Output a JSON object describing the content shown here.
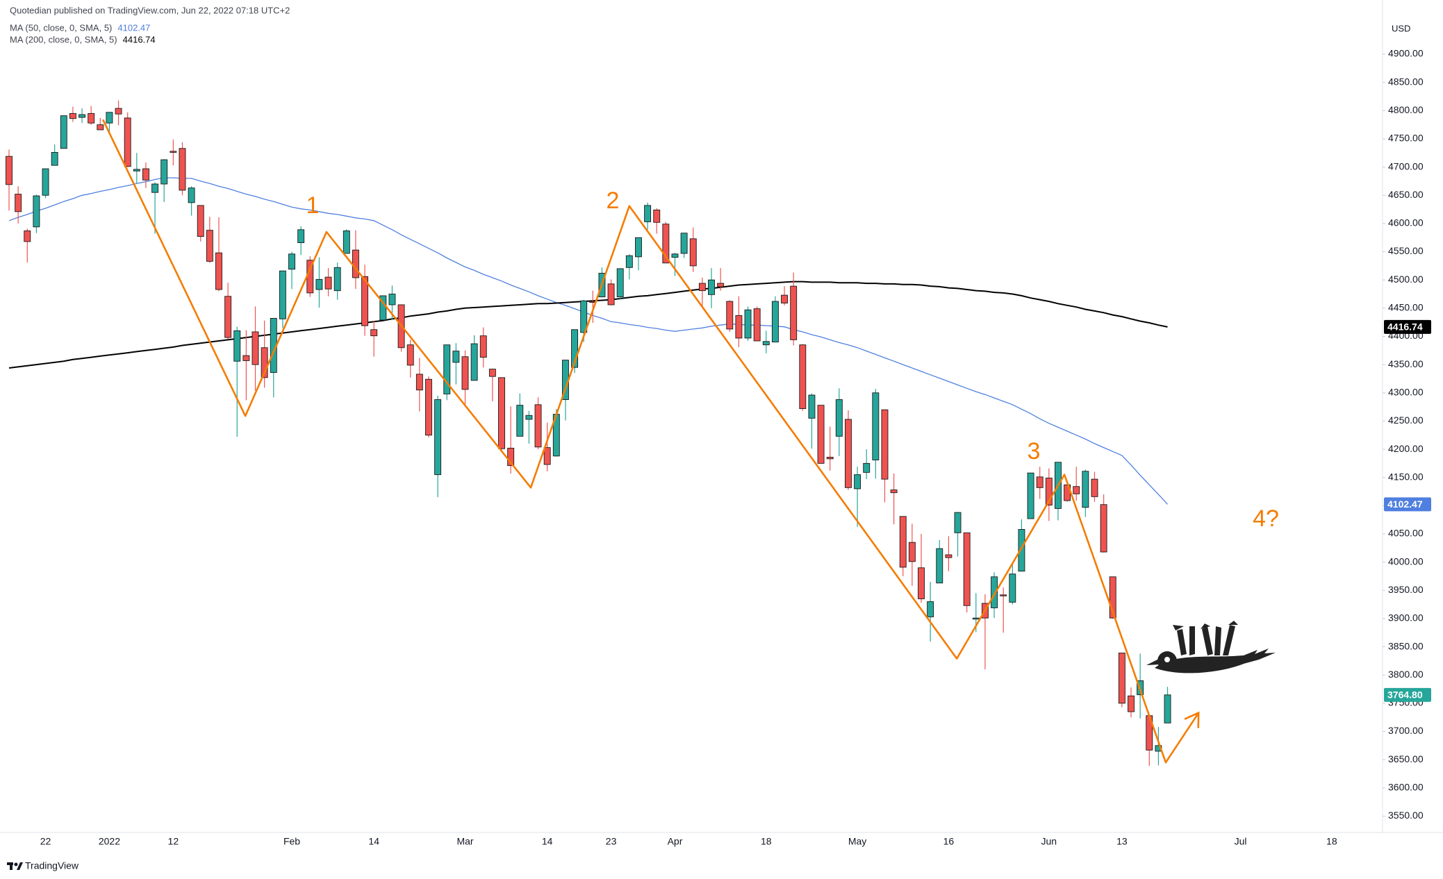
{
  "header": {
    "publisher": "Quotedian published on TradingView.com, Jun 22, 2022 07:18 UTC+2"
  },
  "footer": {
    "brand": "TradingView"
  },
  "chart_data": {
    "type": "candlestick",
    "currency": "USD",
    "categories": [
      null,
      null,
      null,
      null,
      "22",
      null,
      null,
      null,
      null,
      null,
      null,
      "2022",
      null,
      null,
      null,
      null,
      null,
      null,
      "12",
      null,
      null,
      null,
      null,
      null,
      null,
      null,
      null,
      null,
      null,
      null,
      null,
      "Feb",
      null,
      null,
      null,
      null,
      null,
      null,
      null,
      null,
      "14",
      null,
      null,
      null,
      null,
      null,
      null,
      null,
      null,
      null,
      "Mar",
      null,
      null,
      null,
      null,
      null,
      null,
      null,
      null,
      "14",
      null,
      null,
      null,
      null,
      null,
      null,
      "23",
      null,
      null,
      null,
      null,
      null,
      null,
      "Apr",
      null,
      null,
      null,
      null,
      null,
      null,
      null,
      null,
      null,
      "18",
      null,
      null,
      null,
      null,
      null,
      null,
      null,
      null,
      null,
      "May",
      null,
      null,
      null,
      null,
      null,
      null,
      null,
      null,
      null,
      "16",
      null,
      null,
      null,
      null,
      null,
      null,
      null,
      null,
      null,
      null,
      "Jun",
      null,
      null,
      null,
      null,
      null,
      null,
      null,
      "13",
      null,
      null,
      null,
      null,
      null,
      null,
      null,
      null,
      null,
      null,
      null,
      null,
      "Jul",
      null,
      null,
      null,
      null,
      null,
      null,
      null,
      null,
      null,
      "18",
      null,
      null,
      null,
      null
    ],
    "ohlc": [
      [
        4719,
        4731,
        4623,
        4669
      ],
      [
        4652,
        4666,
        4600,
        4621
      ],
      [
        4587,
        4591,
        4531,
        4568
      ],
      [
        4594,
        4651,
        4583,
        4649
      ],
      [
        4650,
        4697,
        4645,
        4697
      ],
      [
        4703,
        4740,
        4703,
        4726
      ],
      [
        4733,
        4791,
        4733,
        4791
      ],
      [
        4795,
        4807,
        4780,
        4786
      ],
      [
        4788,
        4804,
        4778,
        4793
      ],
      [
        4795,
        4808,
        4775,
        4778
      ],
      [
        4775,
        4787,
        4766,
        4766
      ],
      [
        4778,
        4797,
        4758,
        4797
      ],
      [
        4804,
        4818,
        4774,
        4794
      ],
      [
        4787,
        4797,
        4700,
        4701
      ],
      [
        4693,
        4725,
        4671,
        4696
      ],
      [
        4697,
        4708,
        4663,
        4677
      ],
      [
        4655,
        4673,
        4582,
        4670
      ],
      [
        4670,
        4714,
        4638,
        4713
      ],
      [
        4728,
        4749,
        4703,
        4726
      ],
      [
        4733,
        4744,
        4650,
        4659
      ],
      [
        4637,
        4666,
        4614,
        4663
      ],
      [
        4632,
        4632,
        4568,
        4577
      ],
      [
        4588,
        4612,
        4530,
        4533
      ],
      [
        4548,
        4611,
        4480,
        4483
      ],
      [
        4471,
        4495,
        4395,
        4398
      ],
      [
        4356,
        4417,
        4222,
        4410
      ],
      [
        4366,
        4411,
        4287,
        4357
      ],
      [
        4408,
        4453,
        4304,
        4350
      ],
      [
        4380,
        4428,
        4309,
        4327
      ],
      [
        4336,
        4432,
        4292,
        4432
      ],
      [
        4431,
        4516,
        4415,
        4516
      ],
      [
        4519,
        4550,
        4484,
        4546
      ],
      [
        4566,
        4595,
        4544,
        4589
      ],
      [
        4535,
        4542,
        4470,
        4477
      ],
      [
        4483,
        4540,
        4451,
        4501
      ],
      [
        4505,
        4521,
        4471,
        4484
      ],
      [
        4481,
        4531,
        4465,
        4522
      ],
      [
        4547,
        4590,
        4547,
        4587
      ],
      [
        4553,
        4588,
        4484,
        4504
      ],
      [
        4506,
        4527,
        4401,
        4419
      ],
      [
        4412,
        4427,
        4364,
        4401
      ],
      [
        4429,
        4472,
        4429,
        4472
      ],
      [
        4456,
        4490,
        4429,
        4475
      ],
      [
        4456,
        4456,
        4373,
        4380
      ],
      [
        4385,
        4394,
        4327,
        4349
      ],
      [
        4333,
        4362,
        4267,
        4305
      ],
      [
        4324,
        4329,
        4221,
        4225
      ],
      [
        4155,
        4295,
        4115,
        4288
      ],
      [
        4298,
        4385,
        4287,
        4385
      ],
      [
        4354,
        4388,
        4315,
        4374
      ],
      [
        4364,
        4375,
        4279,
        4306
      ],
      [
        4322,
        4402,
        4322,
        4387
      ],
      [
        4401,
        4416,
        4345,
        4363
      ],
      [
        4342,
        4343,
        4285,
        4329
      ],
      [
        4327,
        4327,
        4199,
        4201
      ],
      [
        4202,
        4276,
        4157,
        4171
      ],
      [
        4223,
        4299,
        4223,
        4278
      ],
      [
        4253,
        4268,
        4210,
        4260
      ],
      [
        4279,
        4292,
        4200,
        4204
      ],
      [
        4203,
        4247,
        4161,
        4173
      ],
      [
        4188,
        4271,
        4187,
        4262
      ],
      [
        4288,
        4358,
        4251,
        4358
      ],
      [
        4345,
        4412,
        4335,
        4412
      ],
      [
        4407,
        4465,
        4390,
        4463
      ],
      [
        4462,
        4481,
        4424,
        4461
      ],
      [
        4470,
        4522,
        4469,
        4512
      ],
      [
        4493,
        4501,
        4455,
        4456
      ],
      [
        4470,
        4520,
        4465,
        4520
      ],
      [
        4522,
        4546,
        4501,
        4543
      ],
      [
        4541,
        4575,
        4517,
        4575
      ],
      [
        4603,
        4637,
        4589,
        4632
      ],
      [
        4624,
        4627,
        4582,
        4602
      ],
      [
        4599,
        4603,
        4530,
        4530
      ],
      [
        4540,
        4548,
        4507,
        4546
      ],
      [
        4547,
        4583,
        4539,
        4583
      ],
      [
        4573,
        4593,
        4514,
        4525
      ],
      [
        4494,
        4504,
        4452,
        4481
      ],
      [
        4474,
        4521,
        4450,
        4500
      ],
      [
        4494,
        4521,
        4481,
        4488
      ],
      [
        4462,
        4464,
        4408,
        4413
      ],
      [
        4437,
        4471,
        4381,
        4397
      ],
      [
        4397,
        4453,
        4392,
        4447
      ],
      [
        4449,
        4453,
        4392,
        4392
      ],
      [
        4385,
        4410,
        4370,
        4391
      ],
      [
        4390,
        4471,
        4390,
        4462
      ],
      [
        4473,
        4489,
        4455,
        4459
      ],
      [
        4489,
        4513,
        4384,
        4394
      ],
      [
        4385,
        4386,
        4268,
        4272
      ],
      [
        4255,
        4299,
        4201,
        4296
      ],
      [
        4278,
        4278,
        4175,
        4175
      ],
      [
        4186,
        4240,
        4162,
        4183
      ],
      [
        4223,
        4308,
        4188,
        4288
      ],
      [
        4253,
        4269,
        4128,
        4132
      ],
      [
        4130,
        4169,
        4062,
        4155
      ],
      [
        4159,
        4200,
        4147,
        4175
      ],
      [
        4181,
        4307,
        4148,
        4300
      ],
      [
        4270,
        4270,
        4106,
        4147
      ],
      [
        4128,
        4157,
        4067,
        4123
      ],
      [
        4081,
        4081,
        3975,
        3991
      ],
      [
        4035,
        4068,
        3958,
        4001
      ],
      [
        3990,
        4050,
        3928,
        3935
      ],
      [
        3903,
        3965,
        3859,
        3930
      ],
      [
        3963,
        4039,
        3963,
        4024
      ],
      [
        4013,
        4046,
        3984,
        4008
      ],
      [
        4052,
        4089,
        4010,
        4088
      ],
      [
        4052,
        4052,
        3911,
        3923
      ],
      [
        3899,
        3945,
        3876,
        3901
      ],
      [
        3927,
        3943,
        3810,
        3901
      ],
      [
        3919,
        3982,
        3901,
        3974
      ],
      [
        3942,
        3955,
        3875,
        3941
      ],
      [
        3929,
        3999,
        3925,
        3979
      ],
      [
        3984,
        4076,
        3984,
        4058
      ],
      [
        4077,
        4158,
        4077,
        4158
      ],
      [
        4151,
        4169,
        4112,
        4132
      ],
      [
        4149,
        4166,
        4073,
        4101
      ],
      [
        4095,
        4177,
        4074,
        4177
      ],
      [
        4137,
        4143,
        4107,
        4109
      ],
      [
        4134,
        4169,
        4109,
        4121
      ],
      [
        4097,
        4164,
        4080,
        4161
      ],
      [
        4147,
        4160,
        4107,
        4116
      ],
      [
        4102,
        4120,
        4017,
        4018
      ],
      [
        3974,
        3974,
        3900,
        3901
      ],
      [
        3839,
        3839,
        3743,
        3750
      ],
      [
        3763,
        3778,
        3725,
        3735
      ],
      [
        3765,
        3838,
        3723,
        3790
      ],
      [
        3728,
        3728,
        3639,
        3667
      ],
      [
        3665,
        3708,
        3640,
        3675
      ],
      [
        3715,
        3779,
        3715,
        3764.8
      ],
      null,
      null,
      null,
      null,
      null,
      null,
      null,
      null,
      null,
      null,
      null,
      null,
      null,
      null,
      null,
      null,
      null,
      null,
      null,
      null,
      null,
      null
    ],
    "up_color": "#26a69a",
    "down_color": "#ef5350",
    "last_close_label": "3764.80",
    "series": [
      {
        "name": "MA (50, close, 0, SMA, 5)",
        "color": "#4f7fe0",
        "values": [
          4605,
          4611,
          4616,
          4622,
          4627,
          4633,
          4639,
          4644,
          4650,
          4653,
          4657,
          4660,
          4664,
          4667,
          4671,
          4674,
          4678,
          4681,
          4681,
          4680,
          4680,
          4675,
          4671,
          4666,
          4662,
          4657,
          4652,
          4648,
          4643,
          4639,
          4634,
          4629,
          4626,
          4624,
          4621,
          4618,
          4616,
          4613,
          4610,
          4608,
          4605,
          4597,
          4589,
          4580,
          4572,
          4564,
          4556,
          4548,
          4539,
          4531,
          4523,
          4517,
          4510,
          4504,
          4498,
          4491,
          4485,
          4479,
          4472,
          4466,
          4460,
          4455,
          4449,
          4443,
          4437,
          4432,
          4426,
          4424,
          4421,
          4419,
          4416,
          4414,
          4411,
          4409,
          4411,
          4413,
          4415,
          4418,
          4420,
          4422,
          4421,
          4420,
          4420,
          4419,
          4418,
          4417,
          4412,
          4408,
          4403,
          4399,
          4394,
          4389,
          4385,
          4380,
          4374,
          4368,
          4362,
          4356,
          4350,
          4344,
          4338,
          4332,
          4326,
          4320,
          4314,
          4308,
          4302,
          4297,
          4291,
          4285,
          4279,
          4271,
          4263,
          4254,
          4246,
          4239,
          4232,
          4225,
          4218,
          4210,
          4203,
          4196,
          4189,
          4172,
          4154,
          4137,
          4120,
          4102.47,
          null,
          null,
          null,
          null,
          null,
          null,
          null,
          null,
          null,
          null,
          null,
          null,
          null,
          null,
          null,
          null,
          null,
          null,
          null,
          null,
          null,
          null
        ]
      },
      {
        "name": "MA (200, close, 0, SMA, 5)",
        "color": "#000000",
        "values": [
          4344,
          4346,
          4348,
          4350,
          4352,
          4354,
          4356,
          4359,
          4361,
          4363,
          4365,
          4367,
          4369,
          4371,
          4373,
          4375,
          4377,
          4379,
          4381,
          4384,
          4386,
          4388,
          4390,
          4392,
          4394,
          4396,
          4398,
          4400,
          4402,
          4404,
          4406,
          4408,
          4410,
          4412,
          4414,
          4416,
          4418,
          4420,
          4422,
          4424,
          4426,
          4428,
          4431,
          4433,
          4436,
          4438,
          4440,
          4443,
          4445,
          4448,
          4450,
          4451,
          4452,
          4453,
          4454,
          4455,
          4456,
          4457,
          4458,
          4458,
          4459,
          4460,
          4461,
          4462,
          4463,
          4464,
          4465,
          4467,
          4469,
          4471,
          4472,
          4474,
          4476,
          4478,
          4480,
          4482,
          4484,
          4485,
          4487,
          4489,
          4491,
          4492,
          4493,
          4494,
          4495,
          4496,
          4497,
          4497,
          4496,
          4496,
          4496,
          4495,
          4495,
          4495,
          4494,
          4494,
          4493,
          4493,
          4492,
          4492,
          4491,
          4489,
          4488,
          4486,
          4485,
          4483,
          4481,
          4480,
          4478,
          4477,
          4475,
          4472,
          4468,
          4465,
          4462,
          4458,
          4455,
          4452,
          4448,
          4445,
          4442,
          4438,
          4435,
          4431,
          4427,
          4424,
          4420,
          4416.74,
          null,
          null,
          null,
          null,
          null,
          null,
          null,
          null,
          null,
          null,
          null,
          null,
          null,
          null,
          null,
          null,
          null,
          null,
          null,
          null,
          null,
          null
        ]
      }
    ],
    "ylim": [
      3521,
      4996
    ],
    "yticks": [
      {
        "value": 3550,
        "label": "3550.00"
      },
      {
        "value": 3600,
        "label": "3600.00"
      },
      {
        "value": 3650,
        "label": "3650.00"
      },
      {
        "value": 3700,
        "label": "3700.00"
      },
      {
        "value": 3750,
        "label": "3750.00"
      },
      {
        "value": 3800,
        "label": "3800.00"
      },
      {
        "value": 3850,
        "label": "3850.00"
      },
      {
        "value": 3900,
        "label": "3900.00"
      },
      {
        "value": 3950,
        "label": "3950.00"
      },
      {
        "value": 4000,
        "label": "4000.00"
      },
      {
        "value": 4050,
        "label": "4050.00"
      },
      {
        "value": 4100,
        "label": "4100.00"
      },
      {
        "value": 4150,
        "label": "4150.00"
      },
      {
        "value": 4200,
        "label": "4200.00"
      },
      {
        "value": 4250,
        "label": "4250.00"
      },
      {
        "value": 4300,
        "label": "4300.00"
      },
      {
        "value": 4350,
        "label": "4350.00"
      },
      {
        "value": 4400,
        "label": "4400.00"
      },
      {
        "value": 4450,
        "label": "4450.00"
      },
      {
        "value": 4500,
        "label": "4500.00"
      },
      {
        "value": 4550,
        "label": "4550.00"
      },
      {
        "value": 4600,
        "label": "4600.00"
      },
      {
        "value": 4650,
        "label": "4650.00"
      },
      {
        "value": 4700,
        "label": "4700.00"
      },
      {
        "value": 4750,
        "label": "4750.00"
      },
      {
        "value": 4800,
        "label": "4800.00"
      },
      {
        "value": 4850,
        "label": "4850.00"
      },
      {
        "value": 4900,
        "label": "4900.00"
      }
    ],
    "grid": false,
    "wave_line": {
      "color": "#f57c00",
      "x": [
        10.3,
        25.9,
        34.8,
        57.2,
        68,
        103.9,
        115.7,
        126.8,
        130.4
      ],
      "y": [
        4784,
        4259,
        4585,
        4132,
        4631,
        3829,
        4155,
        3645,
        3733
      ]
    },
    "wave_labels": [
      "1",
      "2",
      "3",
      "4?"
    ]
  }
}
